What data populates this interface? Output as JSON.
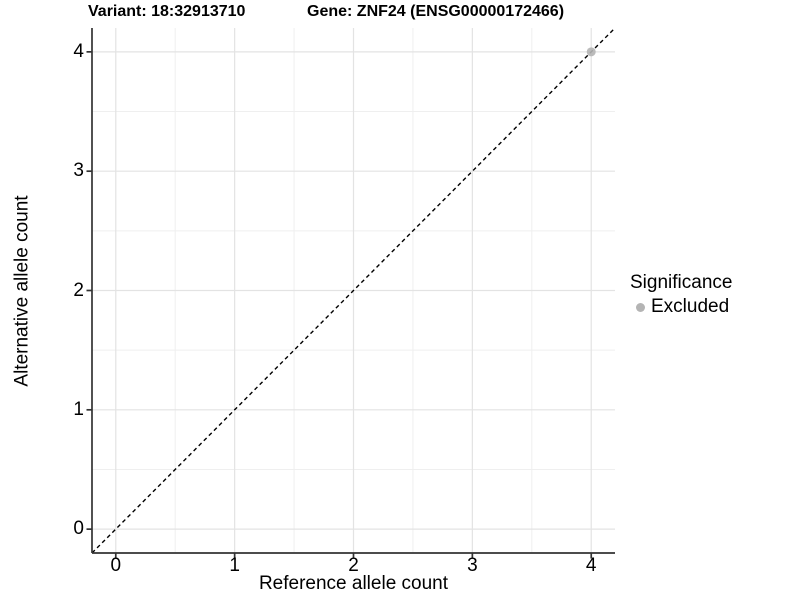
{
  "chart_data": {
    "type": "scatter",
    "title_left": "Variant: 18:32913710",
    "title_right": "Gene: ZNF24 (ENSG00000172466)",
    "xlabel": "Reference allele count",
    "ylabel": "Alternative allele count",
    "xlim": [
      -0.2,
      4.2
    ],
    "ylim": [
      -0.2,
      4.2
    ],
    "x_ticks": [
      0,
      1,
      2,
      3,
      4
    ],
    "y_ticks": [
      0,
      1,
      2,
      3,
      4
    ],
    "minor_grid_x": [
      0.5,
      1.5,
      2.5,
      3.5
    ],
    "minor_grid_y": [
      0.5,
      1.5,
      2.5,
      3.5
    ],
    "grid": "on",
    "reference_line": {
      "style": "dashed",
      "color": "#000000",
      "from": [
        -0.2,
        -0.2
      ],
      "to": [
        4.2,
        4.2
      ]
    },
    "series": [
      {
        "name": "Excluded",
        "marker": "circle",
        "color": "#b4b4b4",
        "points": [
          {
            "x": 4,
            "y": 4
          }
        ]
      }
    ],
    "legend": {
      "position": "right-center",
      "title": "Significance",
      "items": [
        {
          "label": "Excluded",
          "color": "#b4b4b4"
        }
      ]
    }
  },
  "colors": {
    "background": "#ffffff",
    "grid_major": "#e3e3e3",
    "grid_minor": "#efefef",
    "axis_line": "#333333",
    "text": "#000000"
  }
}
